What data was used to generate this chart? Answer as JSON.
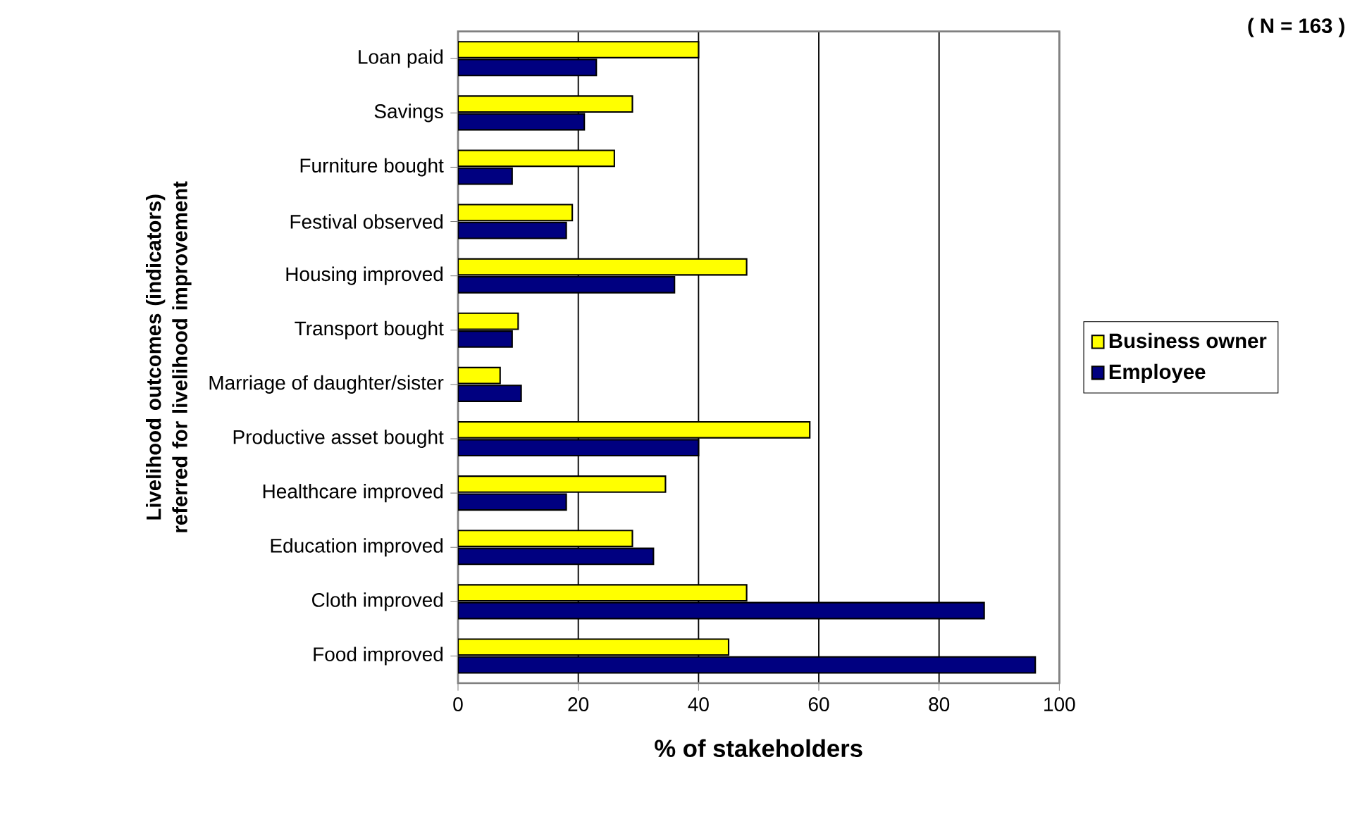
{
  "chart_data": {
    "type": "bar",
    "orientation": "horizontal",
    "categories": [
      "Loan paid",
      "Savings",
      "Furniture bought",
      "Festival observed",
      "Housing improved",
      "Transport bought",
      "Marriage of daughter/sister",
      "Productive asset bought",
      "Healthcare improved",
      "Education improved",
      "Cloth improved",
      "Food improved"
    ],
    "series": [
      {
        "name": "Business owner",
        "color": "#ffff00",
        "values": [
          40,
          29,
          26,
          19,
          48,
          10,
          7,
          58.5,
          34.5,
          29,
          48,
          45
        ]
      },
      {
        "name": "Employee",
        "color": "#000080",
        "values": [
          23,
          21,
          9,
          18,
          36,
          9,
          10.5,
          40,
          18,
          32.5,
          87.5,
          96
        ]
      }
    ],
    "xlabel": "% of stakeholders",
    "ylabel": "Livelihood outcomes (indicators) referred for livelihood improvement",
    "xlim": [
      0,
      100
    ],
    "xticks": [
      0,
      20,
      40,
      60,
      80,
      100
    ],
    "grid": "x",
    "legend": "right",
    "annotations": [
      "( N = 163 )"
    ]
  }
}
